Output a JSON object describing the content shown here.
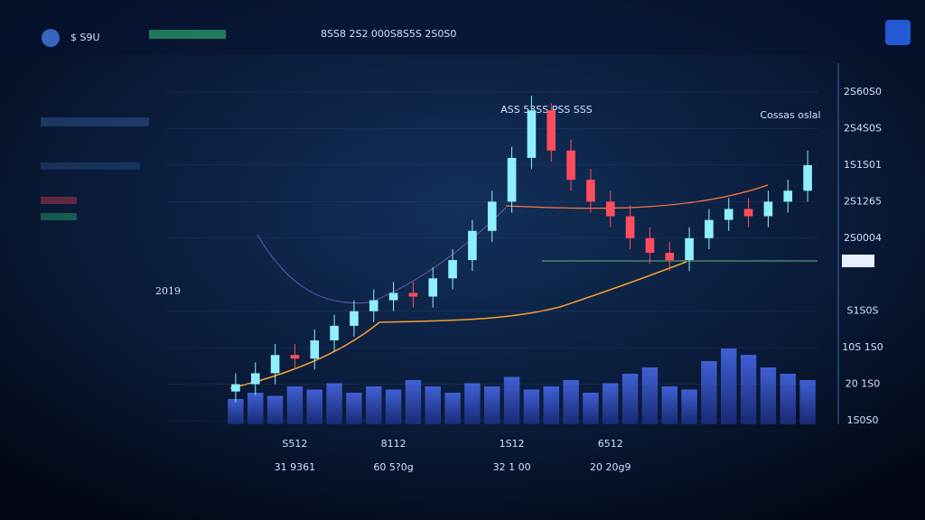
{
  "chart_data": {
    "type": "candlestick",
    "title": "$ S9U",
    "subtitle": "8SS8 2S2 000S8S5S 2S0S0",
    "annotation": "2019",
    "chart_label": "ASS 53SS PSS SSS",
    "legend_label": "Cossas oslal",
    "categories": [
      null,
      null,
      null,
      "S512",
      null,
      null,
      null,
      null,
      "8112",
      null,
      null,
      null,
      null,
      null,
      "1S12",
      null,
      null,
      null,
      null,
      "6512",
      null,
      null,
      null,
      null,
      null,
      null,
      null,
      null,
      null,
      null
    ],
    "category_sublabels": [
      "31 9361",
      "60 5?0g",
      "32 1 00",
      "20 20g9"
    ],
    "open": [
      8,
      10,
      13,
      18,
      17,
      22,
      26,
      30,
      33,
      35,
      34,
      39,
      44,
      52,
      60,
      72,
      85,
      74,
      66,
      60,
      56,
      50,
      46,
      44,
      50,
      55,
      58,
      56,
      60,
      63
    ],
    "high": [
      13,
      16,
      21,
      21,
      25,
      29,
      33,
      36,
      38,
      38,
      42,
      47,
      55,
      63,
      75,
      89,
      87,
      77,
      69,
      63,
      59,
      53,
      49,
      53,
      58,
      61,
      61,
      63,
      66,
      74
    ],
    "low": [
      5,
      7,
      10,
      14,
      14,
      19,
      23,
      27,
      30,
      31,
      31,
      36,
      41,
      49,
      57,
      69,
      71,
      63,
      57,
      53,
      47,
      43,
      41,
      41,
      47,
      52,
      53,
      53,
      57,
      60
    ],
    "close": [
      10,
      13,
      18,
      17,
      22,
      26,
      30,
      33,
      35,
      34,
      39,
      44,
      52,
      60,
      72,
      85,
      74,
      66,
      60,
      56,
      50,
      46,
      44,
      50,
      55,
      58,
      56,
      60,
      63,
      70
    ],
    "volume": [
      8,
      10,
      9,
      12,
      11,
      13,
      10,
      12,
      11,
      14,
      12,
      10,
      13,
      12,
      15,
      11,
      12,
      14,
      10,
      13,
      16,
      18,
      12,
      11,
      20,
      24,
      22,
      18,
      16,
      14
    ],
    "up_color": "#8fefff",
    "down_color": "#ff4d5e",
    "volume_color": "#3b5fd8",
    "ylim": [
      0,
      92
    ],
    "yticks": [
      {
        "value": 90,
        "label": "2S60S0"
      },
      {
        "value": 80,
        "label": "2S4S0S"
      },
      {
        "value": 70,
        "label": "1S1S01"
      },
      {
        "value": 60,
        "label": "2S1265"
      },
      {
        "value": 50,
        "label": "2S0004"
      },
      {
        "value": 30,
        "label": "S1S0S"
      },
      {
        "value": 20,
        "label": "10S 1S0"
      },
      {
        "value": 10,
        "label": "20 1S0"
      },
      {
        "value": 0,
        "label": "1S0S0"
      }
    ],
    "grid": true
  }
}
